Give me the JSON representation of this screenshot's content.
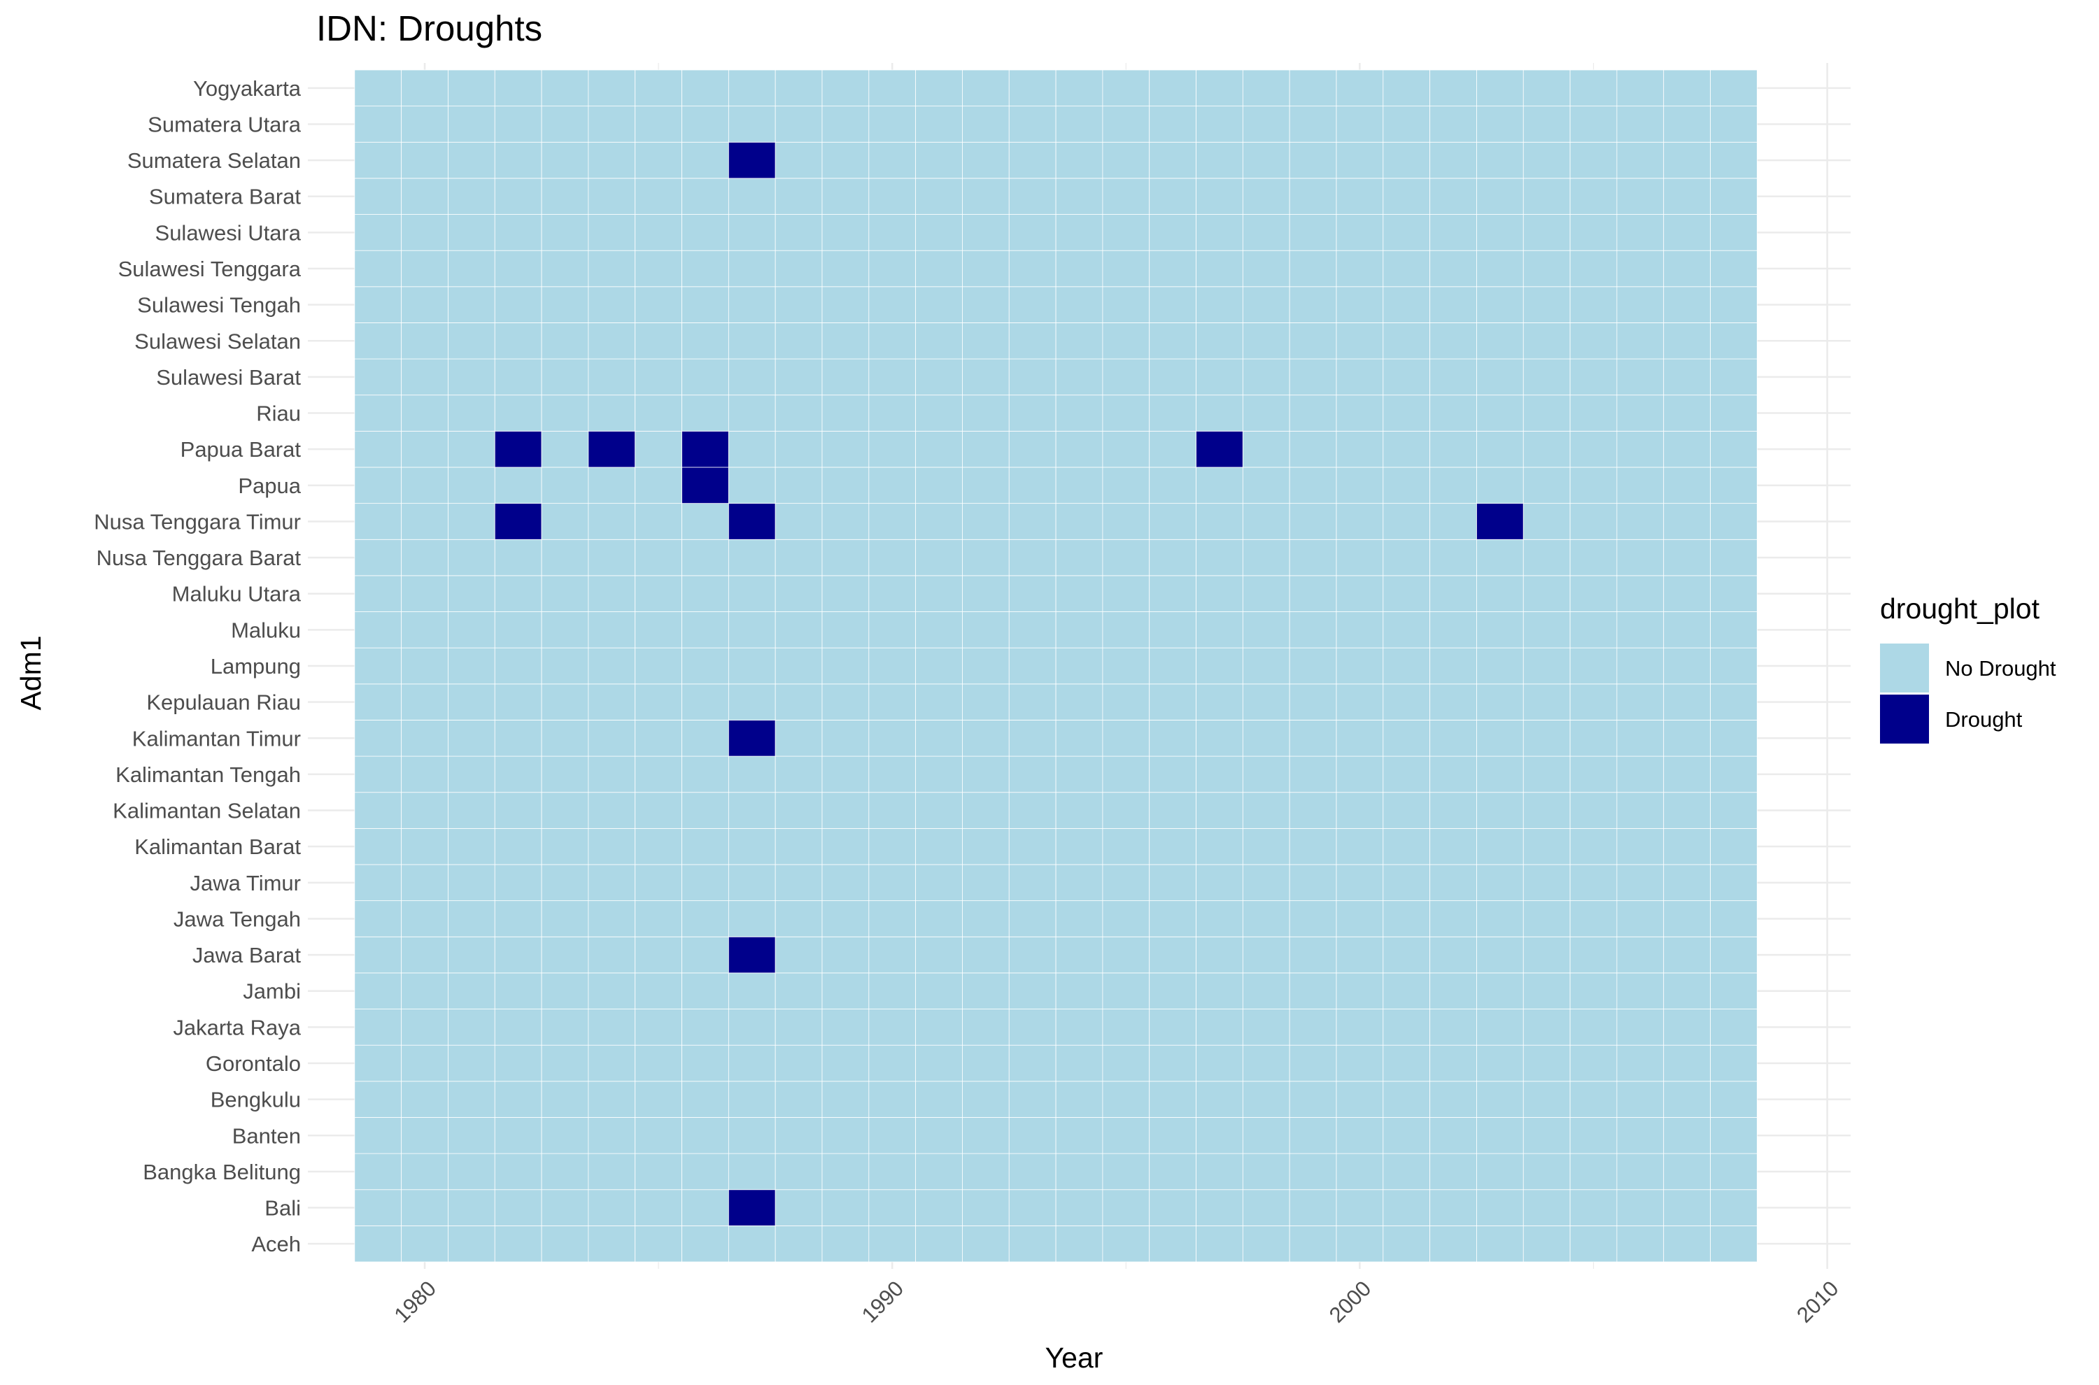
{
  "chart_data": {
    "type": "heatmap",
    "title": "IDN: Droughts",
    "xlabel": "Year",
    "ylabel": "Adm1",
    "x_ticks": [
      1980,
      1990,
      2000,
      2010
    ],
    "x_tick_labels": [
      "1980",
      "1990",
      "2000",
      "2010"
    ],
    "year_range": [
      1979,
      2008
    ],
    "xlim": [
      1977.5,
      2010.5
    ],
    "regions": [
      "Aceh",
      "Bali",
      "Bangka Belitung",
      "Banten",
      "Bengkulu",
      "Gorontalo",
      "Jakarta Raya",
      "Jambi",
      "Jawa Barat",
      "Jawa Tengah",
      "Jawa Timur",
      "Kalimantan Barat",
      "Kalimantan Selatan",
      "Kalimantan Tengah",
      "Kalimantan Timur",
      "Kepulauan Riau",
      "Lampung",
      "Maluku",
      "Maluku Utara",
      "Nusa Tenggara Barat",
      "Nusa Tenggara Timur",
      "Papua",
      "Papua Barat",
      "Riau",
      "Sulawesi Barat",
      "Sulawesi Selatan",
      "Sulawesi Tengah",
      "Sulawesi Tenggara",
      "Sulawesi Utara",
      "Sumatera Barat",
      "Sumatera Selatan",
      "Sumatera Utara",
      "Yogyakarta"
    ],
    "droughts": [
      {
        "region": "Sumatera Selatan",
        "year": 1987
      },
      {
        "region": "Papua Barat",
        "year": 1982
      },
      {
        "region": "Papua Barat",
        "year": 1984
      },
      {
        "region": "Papua Barat",
        "year": 1986
      },
      {
        "region": "Papua Barat",
        "year": 1997
      },
      {
        "region": "Papua",
        "year": 1986
      },
      {
        "region": "Nusa Tenggara Timur",
        "year": 1982
      },
      {
        "region": "Nusa Tenggara Timur",
        "year": 1987
      },
      {
        "region": "Nusa Tenggara Timur",
        "year": 2003
      },
      {
        "region": "Kalimantan Timur",
        "year": 1987
      },
      {
        "region": "Jawa Barat",
        "year": 1987
      },
      {
        "region": "Bali",
        "year": 1987
      }
    ],
    "legend": {
      "title": "drought_plot",
      "position": "right",
      "items": [
        {
          "label": "No Drought",
          "color": "#add8e6"
        },
        {
          "label": "Drought",
          "color": "#00008b"
        }
      ]
    },
    "colors": {
      "no_drought": "#add8e6",
      "drought": "#00008b",
      "grid": "#ebebeb",
      "tile_border": "#ffffff"
    },
    "grid": true
  }
}
